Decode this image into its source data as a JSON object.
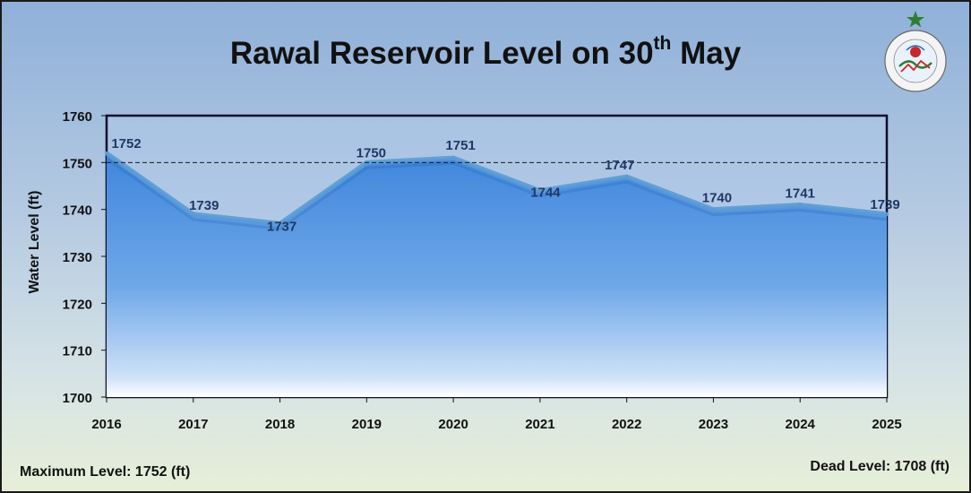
{
  "chart_data": {
    "type": "area",
    "title_main": "Rawal Reservoir Level on 30",
    "title_sup": "th",
    "title_tail": " May",
    "ylabel": "Water Level (ft)",
    "xlabel": "",
    "ylim": [
      1700,
      1760
    ],
    "yticks": [
      "1700",
      "1710",
      "1720",
      "1730",
      "1740",
      "1750",
      "1760"
    ],
    "categories": [
      "2016",
      "2017",
      "2018",
      "2019",
      "2020",
      "2021",
      "2022",
      "2023",
      "2024",
      "2025"
    ],
    "values": [
      1752,
      1739,
      1737,
      1750,
      1751,
      1744,
      1747,
      1740,
      1741,
      1739
    ],
    "data_labels": [
      "1752",
      "1739",
      "1737",
      "1750",
      "1751",
      "1744",
      "1747",
      "1740",
      "1741",
      "1739"
    ],
    "reference_line": 1750,
    "grid": false,
    "legend": "none",
    "fill_color": "#4a90e2",
    "line_color": "#5b9bd5"
  },
  "footer": {
    "max_level": "Maximum Level: 1752 (ft)",
    "dead_level": "Dead Level: 1708 (ft)"
  },
  "logo": {
    "icon": "pakistan-meteorological-department-emblem",
    "ring_text": "PAKISTAN METEOROLOGICAL DEPARTMENT"
  }
}
